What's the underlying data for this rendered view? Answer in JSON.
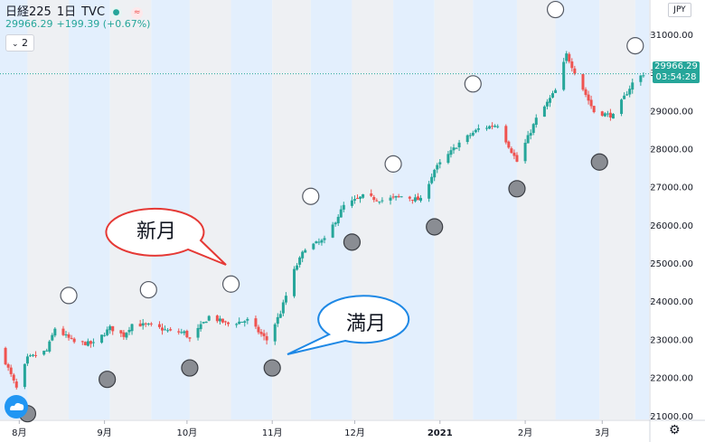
{
  "header": {
    "symbol": "日経225",
    "interval": "1日",
    "source": "TVC",
    "dot_icon": "●",
    "wave_icon": "≈",
    "price": "29966.29",
    "change": "+199.39 (+0.67%)"
  },
  "indicator": {
    "toggle_label": "2"
  },
  "currency": "JPY",
  "last_price": {
    "value": "29966.29",
    "countdown": "03:54:28"
  },
  "colors": {
    "up": "#26a69a",
    "down": "#ef5350",
    "band_blue": "#e3effd",
    "band_gray": "#eef0f3",
    "new_moon_stroke": "#e53935",
    "full_moon_stroke": "#1e88e5"
  },
  "chart_data": {
    "type": "candlestick",
    "y_ticks": [
      "21000.00",
      "22000.00",
      "23000.00",
      "24000.00",
      "25000.00",
      "26000.00",
      "27000.00",
      "28000.00",
      "29000.00",
      "30000.00",
      "31000.00"
    ],
    "ylim": [
      20900,
      31900
    ],
    "x_ticks": [
      "8月",
      "9月",
      "10月",
      "11月",
      "12月",
      "2021",
      "2月",
      "3月"
    ],
    "x_tick_dates": [
      "2020-08-01",
      "2020-09-01",
      "2020-10-01",
      "2020-11-01",
      "2020-12-01",
      "2021-01-01",
      "2021-02-01",
      "2021-03-01"
    ],
    "xlim": [
      "2020-07-25",
      "2021-03-18"
    ],
    "last_price": 29966.29,
    "ohlc_anchors": [
      {
        "date": "2020-07-25",
        "close": 22750
      },
      {
        "date": "2020-07-31",
        "close": 21710
      },
      {
        "date": "2020-08-04",
        "close": 22500
      },
      {
        "date": "2020-08-11",
        "close": 22700
      },
      {
        "date": "2020-08-14",
        "close": 23290
      },
      {
        "date": "2020-08-21",
        "close": 22920
      },
      {
        "date": "2020-08-28",
        "close": 22880
      },
      {
        "date": "2020-09-03",
        "close": 23300
      },
      {
        "date": "2020-09-08",
        "close": 23100
      },
      {
        "date": "2020-09-11",
        "close": 23400
      },
      {
        "date": "2020-09-18",
        "close": 23360
      },
      {
        "date": "2020-09-25",
        "close": 23200
      },
      {
        "date": "2020-09-30",
        "close": 23180
      },
      {
        "date": "2020-10-02",
        "close": 23000
      },
      {
        "date": "2020-10-09",
        "close": 23600
      },
      {
        "date": "2020-10-16",
        "close": 23400
      },
      {
        "date": "2020-10-23",
        "close": 23500
      },
      {
        "date": "2020-10-30",
        "close": 22980
      },
      {
        "date": "2020-11-04",
        "close": 23700
      },
      {
        "date": "2020-11-09",
        "close": 24800
      },
      {
        "date": "2020-11-13",
        "close": 25400
      },
      {
        "date": "2020-11-20",
        "close": 25600
      },
      {
        "date": "2020-11-27",
        "close": 26500
      },
      {
        "date": "2020-12-04",
        "close": 26750
      },
      {
        "date": "2020-12-11",
        "close": 26650
      },
      {
        "date": "2020-12-18",
        "close": 26750
      },
      {
        "date": "2020-12-25",
        "close": 26650
      },
      {
        "date": "2020-12-30",
        "close": 27450
      },
      {
        "date": "2021-01-08",
        "close": 28150
      },
      {
        "date": "2021-01-15",
        "close": 28520
      },
      {
        "date": "2021-01-22",
        "close": 28630
      },
      {
        "date": "2021-01-29",
        "close": 27660
      },
      {
        "date": "2021-02-05",
        "close": 28780
      },
      {
        "date": "2021-02-12",
        "close": 29520
      },
      {
        "date": "2021-02-16",
        "close": 30470
      },
      {
        "date": "2021-02-19",
        "close": 30020
      },
      {
        "date": "2021-02-26",
        "close": 28970
      },
      {
        "date": "2021-03-05",
        "close": 28860
      },
      {
        "date": "2021-03-12",
        "close": 29720
      },
      {
        "date": "2021-03-16",
        "close": 29966
      }
    ],
    "phase_bands": [
      {
        "start": "2020-07-21",
        "end": "2020-08-04",
        "shade": "blue"
      },
      {
        "start": "2020-08-04",
        "end": "2020-08-19",
        "shade": "gray"
      },
      {
        "start": "2020-08-19",
        "end": "2020-09-03",
        "shade": "blue"
      },
      {
        "start": "2020-09-03",
        "end": "2020-09-18",
        "shade": "gray"
      },
      {
        "start": "2020-09-18",
        "end": "2020-10-02",
        "shade": "blue"
      },
      {
        "start": "2020-10-02",
        "end": "2020-10-17",
        "shade": "gray"
      },
      {
        "start": "2020-10-17",
        "end": "2020-11-01",
        "shade": "blue"
      },
      {
        "start": "2020-11-01",
        "end": "2020-11-15",
        "shade": "gray"
      },
      {
        "start": "2020-11-15",
        "end": "2020-11-30",
        "shade": "blue"
      },
      {
        "start": "2020-11-30",
        "end": "2020-12-15",
        "shade": "gray"
      },
      {
        "start": "2020-12-15",
        "end": "2020-12-30",
        "shade": "blue"
      },
      {
        "start": "2020-12-30",
        "end": "2021-01-13",
        "shade": "gray"
      },
      {
        "start": "2021-01-13",
        "end": "2021-01-29",
        "shade": "blue"
      },
      {
        "start": "2021-01-29",
        "end": "2021-02-12",
        "shade": "gray"
      },
      {
        "start": "2021-02-12",
        "end": "2021-02-28",
        "shade": "blue"
      },
      {
        "start": "2021-02-28",
        "end": "2021-03-13",
        "shade": "gray"
      },
      {
        "start": "2021-03-13",
        "end": "2021-03-18",
        "shade": "blue"
      }
    ],
    "new_moons": [
      {
        "date": "2020-08-19",
        "price": 24150
      },
      {
        "date": "2020-09-17",
        "price": 24300
      },
      {
        "date": "2020-10-17",
        "price": 24450
      },
      {
        "date": "2020-11-15",
        "price": 26750
      },
      {
        "date": "2020-12-15",
        "price": 27600
      },
      {
        "date": "2021-01-13",
        "price": 29700
      },
      {
        "date": "2021-02-12",
        "price": 31650
      },
      {
        "date": "2021-03-13",
        "price": 30700
      }
    ],
    "full_moons": [
      {
        "date": "2020-08-04",
        "price": 21050
      },
      {
        "date": "2020-09-02",
        "price": 21950
      },
      {
        "date": "2020-10-02",
        "price": 22250
      },
      {
        "date": "2020-11-01",
        "price": 22250
      },
      {
        "date": "2020-11-30",
        "price": 25550
      },
      {
        "date": "2020-12-30",
        "price": 25950
      },
      {
        "date": "2021-01-29",
        "price": 26950
      },
      {
        "date": "2021-02-28",
        "price": 27650
      }
    ],
    "annotations": [
      {
        "text": "新月",
        "type": "callout",
        "near": "2020-10-17"
      },
      {
        "text": "満月",
        "type": "callout",
        "near": "2020-11-01"
      }
    ]
  }
}
